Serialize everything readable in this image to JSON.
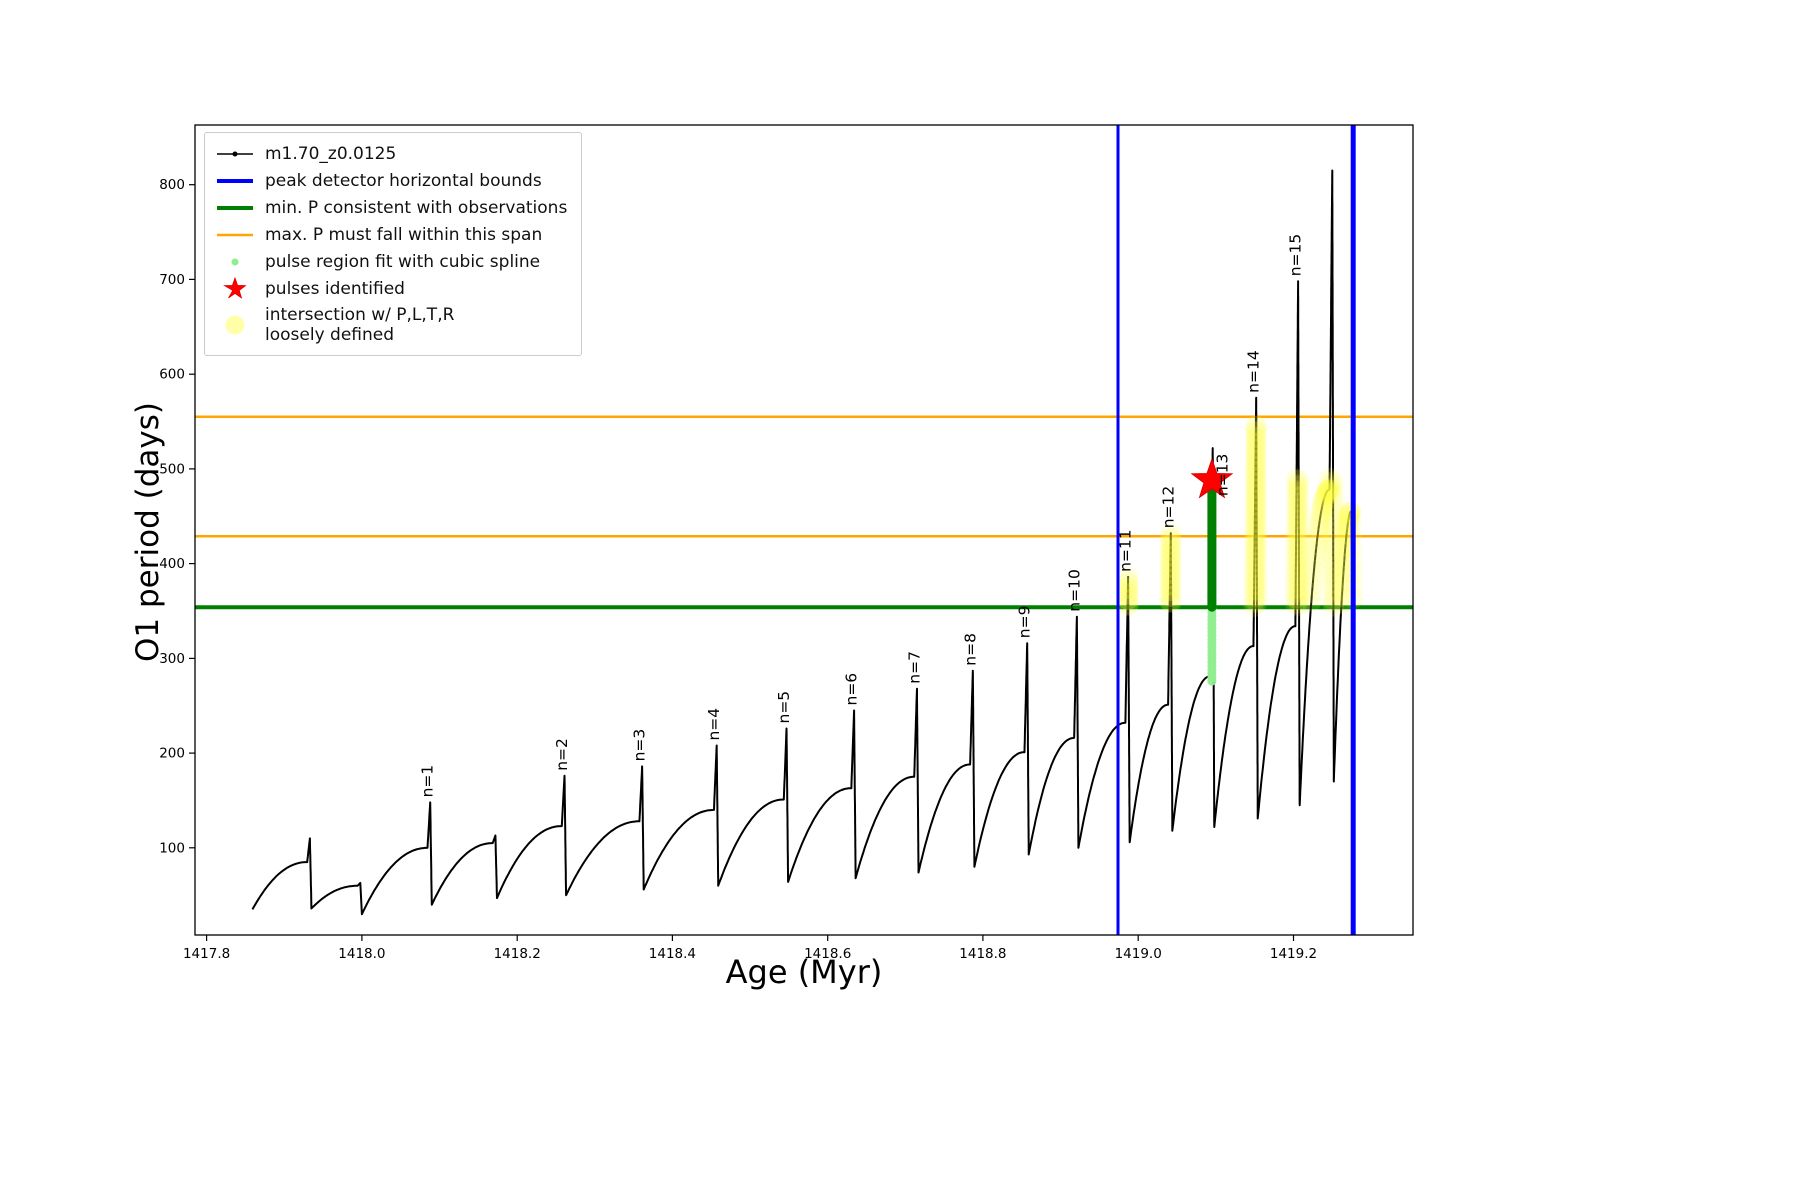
{
  "chart_data": {
    "type": "line",
    "title": "",
    "xlabel": "Age (Myr)",
    "ylabel": "O1 period (days)",
    "xlim": [
      1417.785,
      1419.354
    ],
    "ylim": [
      8,
      863
    ],
    "xticks": [
      {
        "v": 1417.8,
        "label": "1417.8"
      },
      {
        "v": 1418.0,
        "label": "1418.0"
      },
      {
        "v": 1418.2,
        "label": "1418.2"
      },
      {
        "v": 1418.4,
        "label": "1418.4"
      },
      {
        "v": 1418.6,
        "label": "1418.6"
      },
      {
        "v": 1418.8,
        "label": "1418.8"
      },
      {
        "v": 1419.0,
        "label": "1419.0"
      },
      {
        "v": 1419.2,
        "label": "1419.2"
      }
    ],
    "yticks": [
      {
        "v": 100,
        "label": "100"
      },
      {
        "v": 200,
        "label": "200"
      },
      {
        "v": 300,
        "label": "300"
      },
      {
        "v": 400,
        "label": "400"
      },
      {
        "v": 500,
        "label": "500"
      },
      {
        "v": 600,
        "label": "600"
      },
      {
        "v": 700,
        "label": "700"
      },
      {
        "v": 800,
        "label": "800"
      }
    ],
    "colors": {
      "series": "#000000",
      "peak_bounds": "#0000ff",
      "min_P": "#008000",
      "max_P_span": "#ffa500",
      "pulse_fit": "#90ee90",
      "pulse_star": "#ff0000",
      "intersection": "#ffff3d"
    },
    "series": {
      "name": "m1.70_z0.0125",
      "start": {
        "x": 1417.859,
        "y": 35
      },
      "cycles": [
        {
          "x": 1417.933,
          "shoulder": 85,
          "peak": 110,
          "min_after": 36
        },
        {
          "x": 1417.998,
          "shoulder": 60,
          "peak": 63,
          "min_after": 30
        },
        {
          "x": 1418.088,
          "shoulder": 100,
          "peak": 148,
          "min_after": 40,
          "n": "n=1"
        },
        {
          "x": 1418.172,
          "shoulder": 105,
          "peak": 113,
          "min_after": 47
        },
        {
          "x": 1418.261,
          "shoulder": 123,
          "peak": 176,
          "min_after": 50,
          "n": "n=2"
        },
        {
          "x": 1418.361,
          "shoulder": 128,
          "peak": 186,
          "min_after": 56,
          "n": "n=3"
        },
        {
          "x": 1418.457,
          "shoulder": 140,
          "peak": 208,
          "min_after": 60,
          "n": "n=4"
        },
        {
          "x": 1418.547,
          "shoulder": 151,
          "peak": 226,
          "min_after": 64,
          "n": "n=5"
        },
        {
          "x": 1418.634,
          "shoulder": 163,
          "peak": 245,
          "min_after": 68,
          "n": "n=6"
        },
        {
          "x": 1418.715,
          "shoulder": 175,
          "peak": 268,
          "min_after": 74,
          "n": "n=7"
        },
        {
          "x": 1418.787,
          "shoulder": 188,
          "peak": 287,
          "min_after": 80,
          "n": "n=8"
        },
        {
          "x": 1418.857,
          "shoulder": 201,
          "peak": 316,
          "min_after": 93,
          "n": "n=9"
        },
        {
          "x": 1418.921,
          "shoulder": 216,
          "peak": 344,
          "min_after": 100,
          "n": "n=10"
        },
        {
          "x": 1418.987,
          "shoulder": 232,
          "peak": 386,
          "min_after": 106,
          "n": "n=11"
        },
        {
          "x": 1419.042,
          "shoulder": 251,
          "peak": 432,
          "min_after": 118,
          "n": "n=12"
        },
        {
          "x": 1419.096,
          "shoulder": 281,
          "peak": 522,
          "min_after": 122,
          "n": "n=13",
          "label_side": "right"
        },
        {
          "x": 1419.152,
          "shoulder": 313,
          "peak": 575,
          "min_after": 131,
          "n": "n=14"
        },
        {
          "x": 1419.206,
          "shoulder": 334,
          "peak": 698,
          "min_after": 145,
          "n": "n=15"
        },
        {
          "x": 1419.25,
          "shoulder": 478,
          "peak": 815,
          "min_after": 170
        }
      ],
      "tail": {
        "rise_to": {
          "x": 1419.274,
          "y": 455
        },
        "end": {
          "x": 1419.278,
          "y": 325
        }
      }
    },
    "hlines": [
      {
        "y": 555,
        "color": "#ffa500",
        "lw": 2.5,
        "name": "max-p-upper-line"
      },
      {
        "y": 429,
        "color": "#ffa500",
        "lw": 2.5,
        "name": "max-p-lower-line"
      },
      {
        "y": 354,
        "color": "#008000",
        "lw": 4,
        "name": "min-p-line"
      }
    ],
    "vlines": [
      {
        "x": 1418.974,
        "color": "#0000ff",
        "lw": 3,
        "name": "peak-bound-left-line"
      },
      {
        "x": 1419.277,
        "color": "#0000ff",
        "lw": 5,
        "name": "peak-bound-right-line"
      }
    ],
    "pulse_star": {
      "x": 1419.095,
      "y": 488
    },
    "pulse_fit_dots": {
      "x": 1419.095,
      "y_min": 276,
      "y_max": 368
    },
    "pulse_spline_segment": {
      "x": 1419.095,
      "y_min": 354,
      "y_max": 487
    },
    "intersection_regions": [
      {
        "x_min": 1418.981,
        "x_max": 1418.993,
        "y_min": 354,
        "y_max": 390
      },
      {
        "x_min": 1419.036,
        "x_max": 1419.048,
        "y_min": 354,
        "y_max": 436
      },
      {
        "x_min": 1419.146,
        "x_max": 1419.158,
        "y_min": 354,
        "y_max": 548
      },
      {
        "x_min": 1419.185,
        "x_max": 1419.282,
        "y_min": 354,
        "y_max": 492
      }
    ]
  },
  "legend": {
    "items": [
      {
        "label": "m1.70_z0.0125",
        "icon": "series-line-icon"
      },
      {
        "label": "peak detector horizontal bounds",
        "icon": "blue-line-icon"
      },
      {
        "label": "min. P consistent with observations",
        "icon": "green-line-icon"
      },
      {
        "label": "max. P must fall within this span",
        "icon": "orange-line-icon"
      },
      {
        "label": "pulse region fit with cubic spline",
        "icon": "lightgreen-dot-icon"
      },
      {
        "label": "pulses identified",
        "icon": "red-star-icon"
      },
      {
        "label": "intersection w/ P,L,T,R\nloosely defined",
        "icon": "yellow-dot-icon"
      }
    ]
  }
}
